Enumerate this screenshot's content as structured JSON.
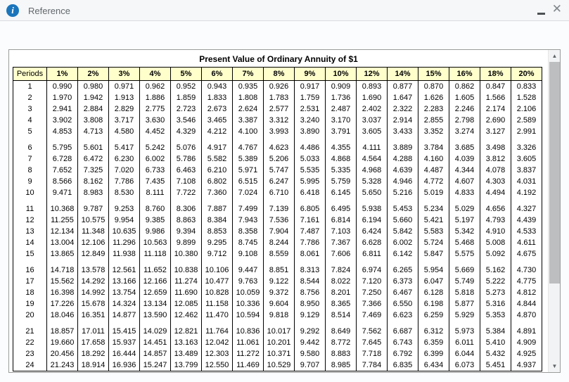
{
  "window": {
    "title": "Reference",
    "info_icon_glyph": "i",
    "minimize_icon": "minimize-dash",
    "close_icon": "✕"
  },
  "icons": {
    "scroll_up": "▲",
    "scroll_down": "▼"
  },
  "colors": {
    "accent_blue": "#1b75bb",
    "table_header_bg": "#ffffcc",
    "table_border": "#000000"
  },
  "table": {
    "title": "Present Value of Ordinary Annuity of $1",
    "group_size": 5,
    "columns": [
      "Periods",
      "1%",
      "2%",
      "3%",
      "4%",
      "5%",
      "6%",
      "7%",
      "8%",
      "9%",
      "10%",
      "12%",
      "14%",
      "15%",
      "16%",
      "18%",
      "20%"
    ],
    "rows": [
      [
        "1",
        "0.990",
        "0.980",
        "0.971",
        "0.962",
        "0.952",
        "0.943",
        "0.935",
        "0.926",
        "0.917",
        "0.909",
        "0.893",
        "0.877",
        "0.870",
        "0.862",
        "0.847",
        "0.833"
      ],
      [
        "2",
        "1.970",
        "1.942",
        "1.913",
        "1.886",
        "1.859",
        "1.833",
        "1.808",
        "1.783",
        "1.759",
        "1.736",
        "1.690",
        "1.647",
        "1.626",
        "1.605",
        "1.566",
        "1.528"
      ],
      [
        "3",
        "2.941",
        "2.884",
        "2.829",
        "2.775",
        "2.723",
        "2.673",
        "2.624",
        "2.577",
        "2.531",
        "2.487",
        "2.402",
        "2.322",
        "2.283",
        "2.246",
        "2.174",
        "2.106"
      ],
      [
        "4",
        "3.902",
        "3.808",
        "3.717",
        "3.630",
        "3.546",
        "3.465",
        "3.387",
        "3.312",
        "3.240",
        "3.170",
        "3.037",
        "2.914",
        "2.855",
        "2.798",
        "2.690",
        "2.589"
      ],
      [
        "5",
        "4.853",
        "4.713",
        "4.580",
        "4.452",
        "4.329",
        "4.212",
        "4.100",
        "3.993",
        "3.890",
        "3.791",
        "3.605",
        "3.433",
        "3.352",
        "3.274",
        "3.127",
        "2.991"
      ],
      [
        "6",
        "5.795",
        "5.601",
        "5.417",
        "5.242",
        "5.076",
        "4.917",
        "4.767",
        "4.623",
        "4.486",
        "4.355",
        "4.111",
        "3.889",
        "3.784",
        "3.685",
        "3.498",
        "3.326"
      ],
      [
        "7",
        "6.728",
        "6.472",
        "6.230",
        "6.002",
        "5.786",
        "5.582",
        "5.389",
        "5.206",
        "5.033",
        "4.868",
        "4.564",
        "4.288",
        "4.160",
        "4.039",
        "3.812",
        "3.605"
      ],
      [
        "8",
        "7.652",
        "7.325",
        "7.020",
        "6.733",
        "6.463",
        "6.210",
        "5.971",
        "5.747",
        "5.535",
        "5.335",
        "4.968",
        "4.639",
        "4.487",
        "4.344",
        "4.078",
        "3.837"
      ],
      [
        "9",
        "8.566",
        "8.162",
        "7.786",
        "7.435",
        "7.108",
        "6.802",
        "6.515",
        "6.247",
        "5.995",
        "5.759",
        "5.328",
        "4.946",
        "4.772",
        "4.607",
        "4.303",
        "4.031"
      ],
      [
        "10",
        "9.471",
        "8.983",
        "8.530",
        "8.111",
        "7.722",
        "7.360",
        "7.024",
        "6.710",
        "6.418",
        "6.145",
        "5.650",
        "5.216",
        "5.019",
        "4.833",
        "4.494",
        "4.192"
      ],
      [
        "11",
        "10.368",
        "9.787",
        "9.253",
        "8.760",
        "8.306",
        "7.887",
        "7.499",
        "7.139",
        "6.805",
        "6.495",
        "5.938",
        "5.453",
        "5.234",
        "5.029",
        "4.656",
        "4.327"
      ],
      [
        "12",
        "11.255",
        "10.575",
        "9.954",
        "9.385",
        "8.863",
        "8.384",
        "7.943",
        "7.536",
        "7.161",
        "6.814",
        "6.194",
        "5.660",
        "5.421",
        "5.197",
        "4.793",
        "4.439"
      ],
      [
        "13",
        "12.134",
        "11.348",
        "10.635",
        "9.986",
        "9.394",
        "8.853",
        "8.358",
        "7.904",
        "7.487",
        "7.103",
        "6.424",
        "5.842",
        "5.583",
        "5.342",
        "4.910",
        "4.533"
      ],
      [
        "14",
        "13.004",
        "12.106",
        "11.296",
        "10.563",
        "9.899",
        "9.295",
        "8.745",
        "8.244",
        "7.786",
        "7.367",
        "6.628",
        "6.002",
        "5.724",
        "5.468",
        "5.008",
        "4.611"
      ],
      [
        "15",
        "13.865",
        "12.849",
        "11.938",
        "11.118",
        "10.380",
        "9.712",
        "9.108",
        "8.559",
        "8.061",
        "7.606",
        "6.811",
        "6.142",
        "5.847",
        "5.575",
        "5.092",
        "4.675"
      ],
      [
        "16",
        "14.718",
        "13.578",
        "12.561",
        "11.652",
        "10.838",
        "10.106",
        "9.447",
        "8.851",
        "8.313",
        "7.824",
        "6.974",
        "6.265",
        "5.954",
        "5.669",
        "5.162",
        "4.730"
      ],
      [
        "17",
        "15.562",
        "14.292",
        "13.166",
        "12.166",
        "11.274",
        "10.477",
        "9.763",
        "9.122",
        "8.544",
        "8.022",
        "7.120",
        "6.373",
        "6.047",
        "5.749",
        "5.222",
        "4.775"
      ],
      [
        "18",
        "16.398",
        "14.992",
        "13.754",
        "12.659",
        "11.690",
        "10.828",
        "10.059",
        "9.372",
        "8.756",
        "8.201",
        "7.250",
        "6.467",
        "6.128",
        "5.818",
        "5.273",
        "4.812"
      ],
      [
        "19",
        "17.226",
        "15.678",
        "14.324",
        "13.134",
        "12.085",
        "11.158",
        "10.336",
        "9.604",
        "8.950",
        "8.365",
        "7.366",
        "6.550",
        "6.198",
        "5.877",
        "5.316",
        "4.844"
      ],
      [
        "20",
        "18.046",
        "16.351",
        "14.877",
        "13.590",
        "12.462",
        "11.470",
        "10.594",
        "9.818",
        "9.129",
        "8.514",
        "7.469",
        "6.623",
        "6.259",
        "5.929",
        "5.353",
        "4.870"
      ],
      [
        "21",
        "18.857",
        "17.011",
        "15.415",
        "14.029",
        "12.821",
        "11.764",
        "10.836",
        "10.017",
        "9.292",
        "8.649",
        "7.562",
        "6.687",
        "6.312",
        "5.973",
        "5.384",
        "4.891"
      ],
      [
        "22",
        "19.660",
        "17.658",
        "15.937",
        "14.451",
        "13.163",
        "12.042",
        "11.061",
        "10.201",
        "9.442",
        "8.772",
        "7.645",
        "6.743",
        "6.359",
        "6.011",
        "5.410",
        "4.909"
      ],
      [
        "23",
        "20.456",
        "18.292",
        "16.444",
        "14.857",
        "13.489",
        "12.303",
        "11.272",
        "10.371",
        "9.580",
        "8.883",
        "7.718",
        "6.792",
        "6.399",
        "6.044",
        "5.432",
        "4.925"
      ],
      [
        "24",
        "21.243",
        "18.914",
        "16.936",
        "15.247",
        "13.799",
        "12.550",
        "11.469",
        "10.529",
        "9.707",
        "8.985",
        "7.784",
        "6.835",
        "6.434",
        "6.073",
        "5.451",
        "4.937"
      ]
    ]
  }
}
